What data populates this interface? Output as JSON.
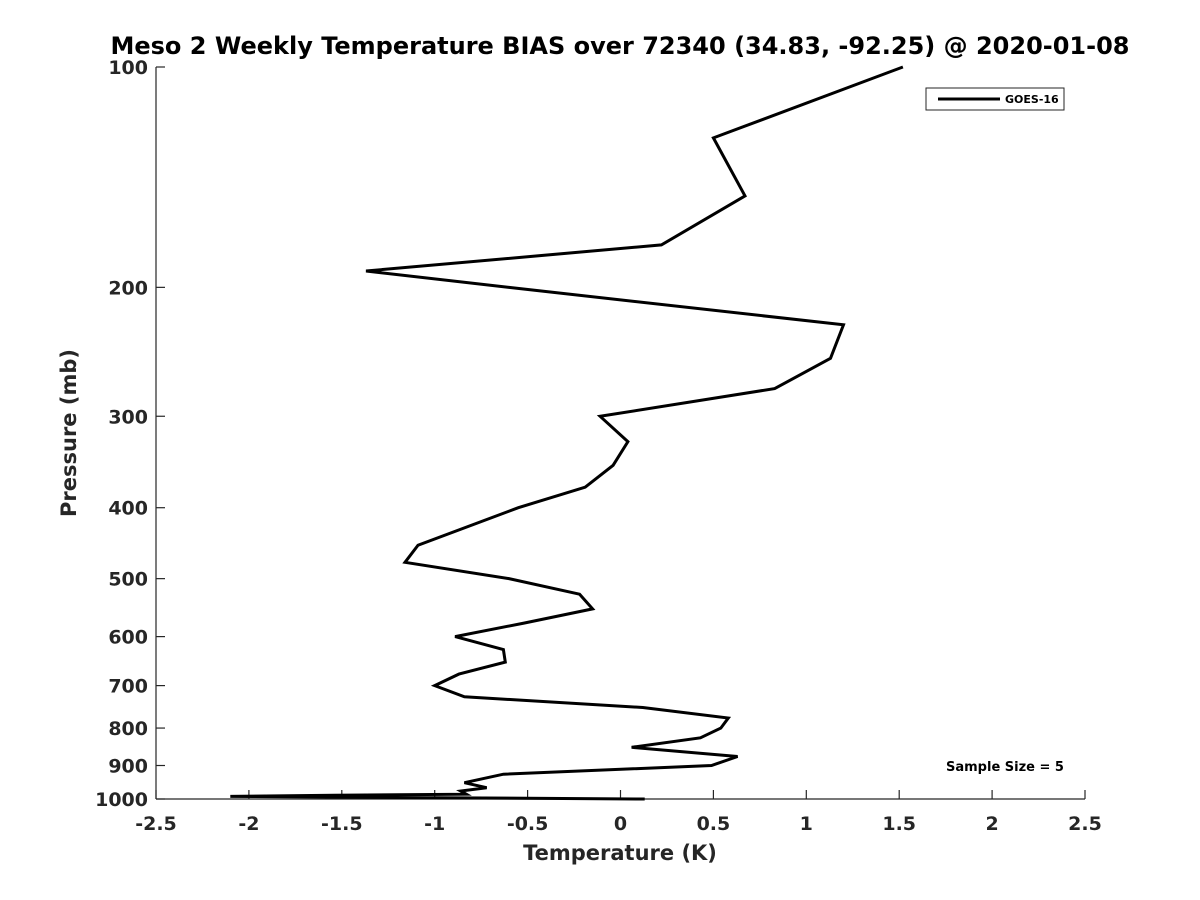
{
  "chart_data": {
    "type": "line",
    "title": "Meso 2 Weekly Temperature BIAS over 72340 (34.83, -92.25) @ 2020-01-08",
    "xlabel": "Temperature (K)",
    "ylabel": "Pressure (mb)",
    "xlim": [
      -2.5,
      2.5
    ],
    "ylim": [
      100,
      1000
    ],
    "y_scale": "log",
    "y_reversed": true,
    "x_ticks": [
      -2.5,
      -2,
      -1.5,
      -1,
      -0.5,
      0,
      0.5,
      1,
      1.5,
      2,
      2.5
    ],
    "x_tick_labels": [
      "-2.5",
      "-2",
      "-1.5",
      "-1",
      "-0.5",
      "0",
      "0.5",
      "1",
      "1.5",
      "2",
      "2.5"
    ],
    "y_ticks": [
      100,
      200,
      300,
      400,
      500,
      600,
      700,
      800,
      900,
      1000
    ],
    "y_tick_labels": [
      "100",
      "200",
      "300",
      "400",
      "500",
      "600",
      "700",
      "800",
      "900",
      "1000"
    ],
    "grid": false,
    "legend_position": "top-right",
    "annotation": "Sample Size = 5",
    "series": [
      {
        "name": "GOES-16",
        "color": "#000000",
        "points": [
          {
            "x": 1.52,
            "y": 100
          },
          {
            "x": 0.5,
            "y": 125
          },
          {
            "x": 0.67,
            "y": 150
          },
          {
            "x": 0.22,
            "y": 175
          },
          {
            "x": -1.37,
            "y": 190
          },
          {
            "x": -0.6,
            "y": 200
          },
          {
            "x": 1.2,
            "y": 225
          },
          {
            "x": 1.13,
            "y": 250
          },
          {
            "x": 0.83,
            "y": 275
          },
          {
            "x": -0.11,
            "y": 300
          },
          {
            "x": 0.04,
            "y": 325
          },
          {
            "x": -0.04,
            "y": 350
          },
          {
            "x": -0.19,
            "y": 375
          },
          {
            "x": -0.55,
            "y": 400
          },
          {
            "x": -1.09,
            "y": 450
          },
          {
            "x": -1.16,
            "y": 475
          },
          {
            "x": -0.6,
            "y": 500
          },
          {
            "x": -0.22,
            "y": 525
          },
          {
            "x": -0.15,
            "y": 550
          },
          {
            "x": -0.52,
            "y": 575
          },
          {
            "x": -0.89,
            "y": 600
          },
          {
            "x": -0.63,
            "y": 625
          },
          {
            "x": -0.62,
            "y": 650
          },
          {
            "x": -0.87,
            "y": 675
          },
          {
            "x": -1.0,
            "y": 700
          },
          {
            "x": -0.84,
            "y": 725
          },
          {
            "x": 0.12,
            "y": 750
          },
          {
            "x": 0.58,
            "y": 775
          },
          {
            "x": 0.54,
            "y": 800
          },
          {
            "x": 0.43,
            "y": 825
          },
          {
            "x": 0.06,
            "y": 850
          },
          {
            "x": 0.63,
            "y": 875
          },
          {
            "x": 0.49,
            "y": 900
          },
          {
            "x": -0.63,
            "y": 925
          },
          {
            "x": -0.84,
            "y": 950
          },
          {
            "x": -0.72,
            "y": 965
          },
          {
            "x": -0.86,
            "y": 975
          },
          {
            "x": -0.83,
            "y": 985
          },
          {
            "x": -1.54,
            "y": 988
          },
          {
            "x": -2.1,
            "y": 992
          },
          {
            "x": -1.0,
            "y": 996
          },
          {
            "x": 0.13,
            "y": 1000
          }
        ]
      }
    ]
  }
}
